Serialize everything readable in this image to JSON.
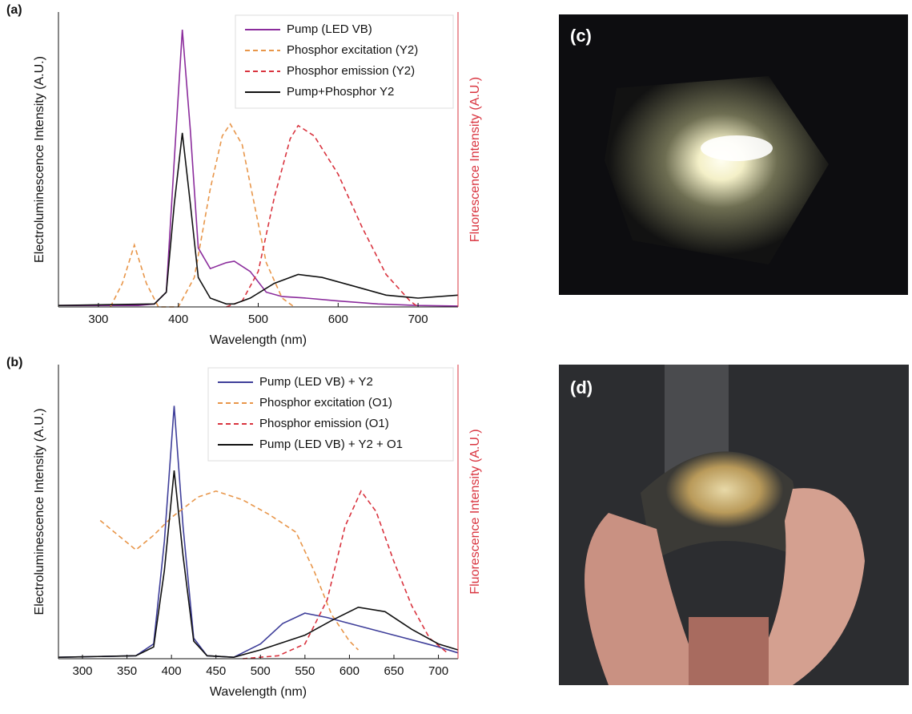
{
  "chart_data": [
    {
      "type": "line",
      "panel_label": "(a)",
      "xlabel": "Wavelength (nm)",
      "ylabel": "Electroluminescence Intensity (A.U.)",
      "y2label": "Fluorescence Intensity (A.U.)",
      "xlim": [
        250,
        750
      ],
      "xticks": [
        300,
        400,
        500,
        600,
        700
      ],
      "ylim": [
        0,
        1
      ],
      "y2lim": [
        0,
        1
      ],
      "legend": "upper right",
      "series": [
        {
          "name": "Pump (LED VB)",
          "color": "#8b2c9c",
          "dash": false,
          "x": [
            250,
            350,
            370,
            385,
            395,
            405,
            415,
            425,
            440,
            460,
            470,
            490,
            510,
            530,
            560,
            600,
            650,
            700,
            750
          ],
          "values": [
            0.005,
            0.005,
            0.01,
            0.05,
            0.5,
            0.94,
            0.6,
            0.2,
            0.13,
            0.15,
            0.155,
            0.12,
            0.05,
            0.035,
            0.03,
            0.02,
            0.01,
            0.005,
            0.003
          ]
        },
        {
          "name": "Phosphor excitation (Y2)",
          "color": "#e8964a",
          "dash": true,
          "axis": "y2",
          "x": [
            315,
            330,
            345,
            360,
            375,
            400,
            420,
            440,
            455,
            465,
            480,
            495,
            510,
            530,
            545
          ],
          "values": [
            0,
            0.08,
            0.21,
            0.08,
            0,
            0,
            0.1,
            0.4,
            0.58,
            0.62,
            0.55,
            0.35,
            0.15,
            0.03,
            0
          ]
        },
        {
          "name": "Phosphor emission (Y2)",
          "color": "#d9343f",
          "dash": true,
          "axis": "y2",
          "x": [
            460,
            480,
            500,
            520,
            540,
            550,
            570,
            600,
            630,
            660,
            690,
            700
          ],
          "values": [
            0,
            0.02,
            0.12,
            0.37,
            0.57,
            0.615,
            0.58,
            0.45,
            0.27,
            0.11,
            0.02,
            0
          ]
        },
        {
          "name": "Pump+Phosphor Y2",
          "color": "#111111",
          "dash": false,
          "x": [
            250,
            370,
            385,
            395,
            405,
            415,
            425,
            440,
            460,
            470,
            490,
            520,
            550,
            580,
            620,
            660,
            700,
            750
          ],
          "values": [
            0.005,
            0.01,
            0.05,
            0.35,
            0.59,
            0.35,
            0.1,
            0.03,
            0.01,
            0.01,
            0.03,
            0.08,
            0.11,
            0.1,
            0.07,
            0.04,
            0.03,
            0.04
          ]
        }
      ]
    },
    {
      "type": "line",
      "panel_label": "(b)",
      "xlabel": "Wavelength (nm)",
      "ylabel": "Electroluminescence Intensity (A.U.)",
      "y2label": "Fluorescence Intensity (A.U.)",
      "xlim": [
        273,
        722
      ],
      "xticks": [
        300,
        350,
        400,
        450,
        500,
        550,
        600,
        650,
        700
      ],
      "ylim": [
        0,
        1
      ],
      "y2lim": [
        0,
        1
      ],
      "legend": "upper right",
      "series": [
        {
          "name": "Pump (LED VB) + Y2",
          "color": "#3f3f9a",
          "dash": false,
          "x": [
            273,
            360,
            380,
            392,
            403,
            413,
            425,
            440,
            470,
            500,
            525,
            550,
            575,
            600,
            650,
            700,
            722
          ],
          "values": [
            0.005,
            0.01,
            0.05,
            0.4,
            0.86,
            0.45,
            0.07,
            0.01,
            0.005,
            0.05,
            0.12,
            0.155,
            0.14,
            0.12,
            0.08,
            0.04,
            0.02
          ]
        },
        {
          "name": "Phosphor excitation (O1)",
          "color": "#e8964a",
          "dash": true,
          "axis": "y2",
          "x": [
            320,
            340,
            360,
            380,
            400,
            430,
            450,
            480,
            510,
            540,
            560,
            580,
            600,
            610
          ],
          "values": [
            0.47,
            0.42,
            0.37,
            0.42,
            0.48,
            0.55,
            0.57,
            0.54,
            0.49,
            0.43,
            0.3,
            0.15,
            0.06,
            0.03
          ]
        },
        {
          "name": "Phosphor emission (O1)",
          "color": "#d9343f",
          "dash": true,
          "axis": "y2",
          "x": [
            480,
            520,
            550,
            575,
            595,
            613,
            630,
            650,
            670,
            690,
            710
          ],
          "values": [
            0,
            0.01,
            0.05,
            0.2,
            0.45,
            0.57,
            0.5,
            0.33,
            0.18,
            0.07,
            0.02
          ]
        },
        {
          "name": "Pump (LED VB) + Y2 + O1",
          "color": "#111111",
          "dash": false,
          "x": [
            273,
            360,
            380,
            392,
            403,
            413,
            425,
            440,
            470,
            500,
            550,
            580,
            610,
            640,
            670,
            700,
            722
          ],
          "values": [
            0.005,
            0.01,
            0.04,
            0.3,
            0.64,
            0.35,
            0.06,
            0.01,
            0.005,
            0.03,
            0.08,
            0.13,
            0.175,
            0.16,
            0.1,
            0.05,
            0.03
          ]
        }
      ]
    }
  ],
  "photos": [
    {
      "label": "(c)"
    },
    {
      "label": "(d)"
    }
  ]
}
